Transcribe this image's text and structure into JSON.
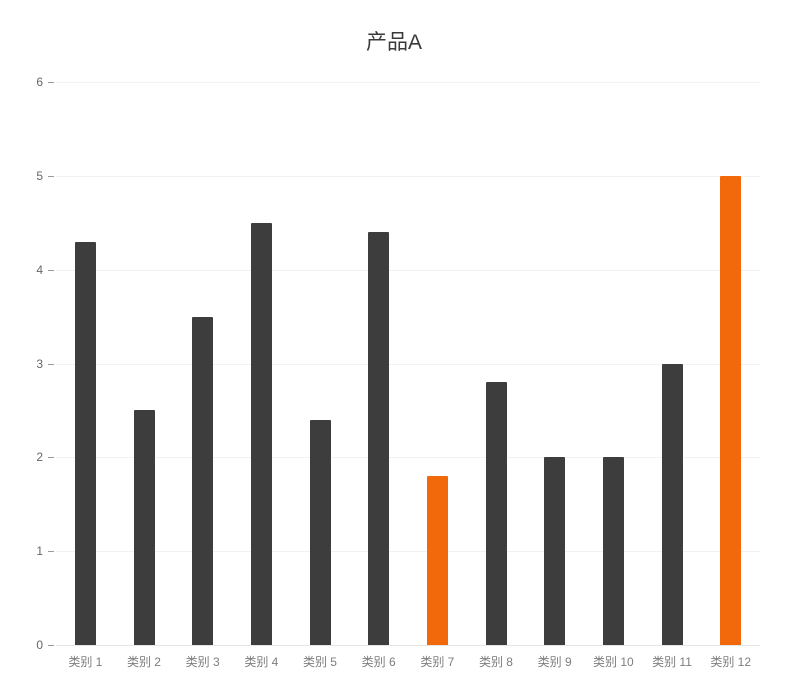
{
  "chart_data": {
    "type": "bar",
    "title": "产品A",
    "categories": [
      "类别 1",
      "类别 2",
      "类别 3",
      "类别 4",
      "类别 5",
      "类别 6",
      "类别 7",
      "类别 8",
      "类别 9",
      "类别 10",
      "类别 11",
      "类别 12"
    ],
    "values": [
      4.3,
      2.5,
      3.5,
      4.5,
      2.4,
      4.4,
      1.8,
      2.8,
      2.0,
      2.0,
      3.0,
      5.0
    ],
    "xlabel": "",
    "ylabel": "",
    "ylim": [
      0,
      6
    ],
    "y_ticks": [
      0,
      1,
      2,
      3,
      4,
      5,
      6
    ],
    "grid": true,
    "legend": "none",
    "bar_color": "#3d3d3d",
    "highlight_color": "#f2690c",
    "highlight_indices": [
      6,
      11
    ]
  }
}
